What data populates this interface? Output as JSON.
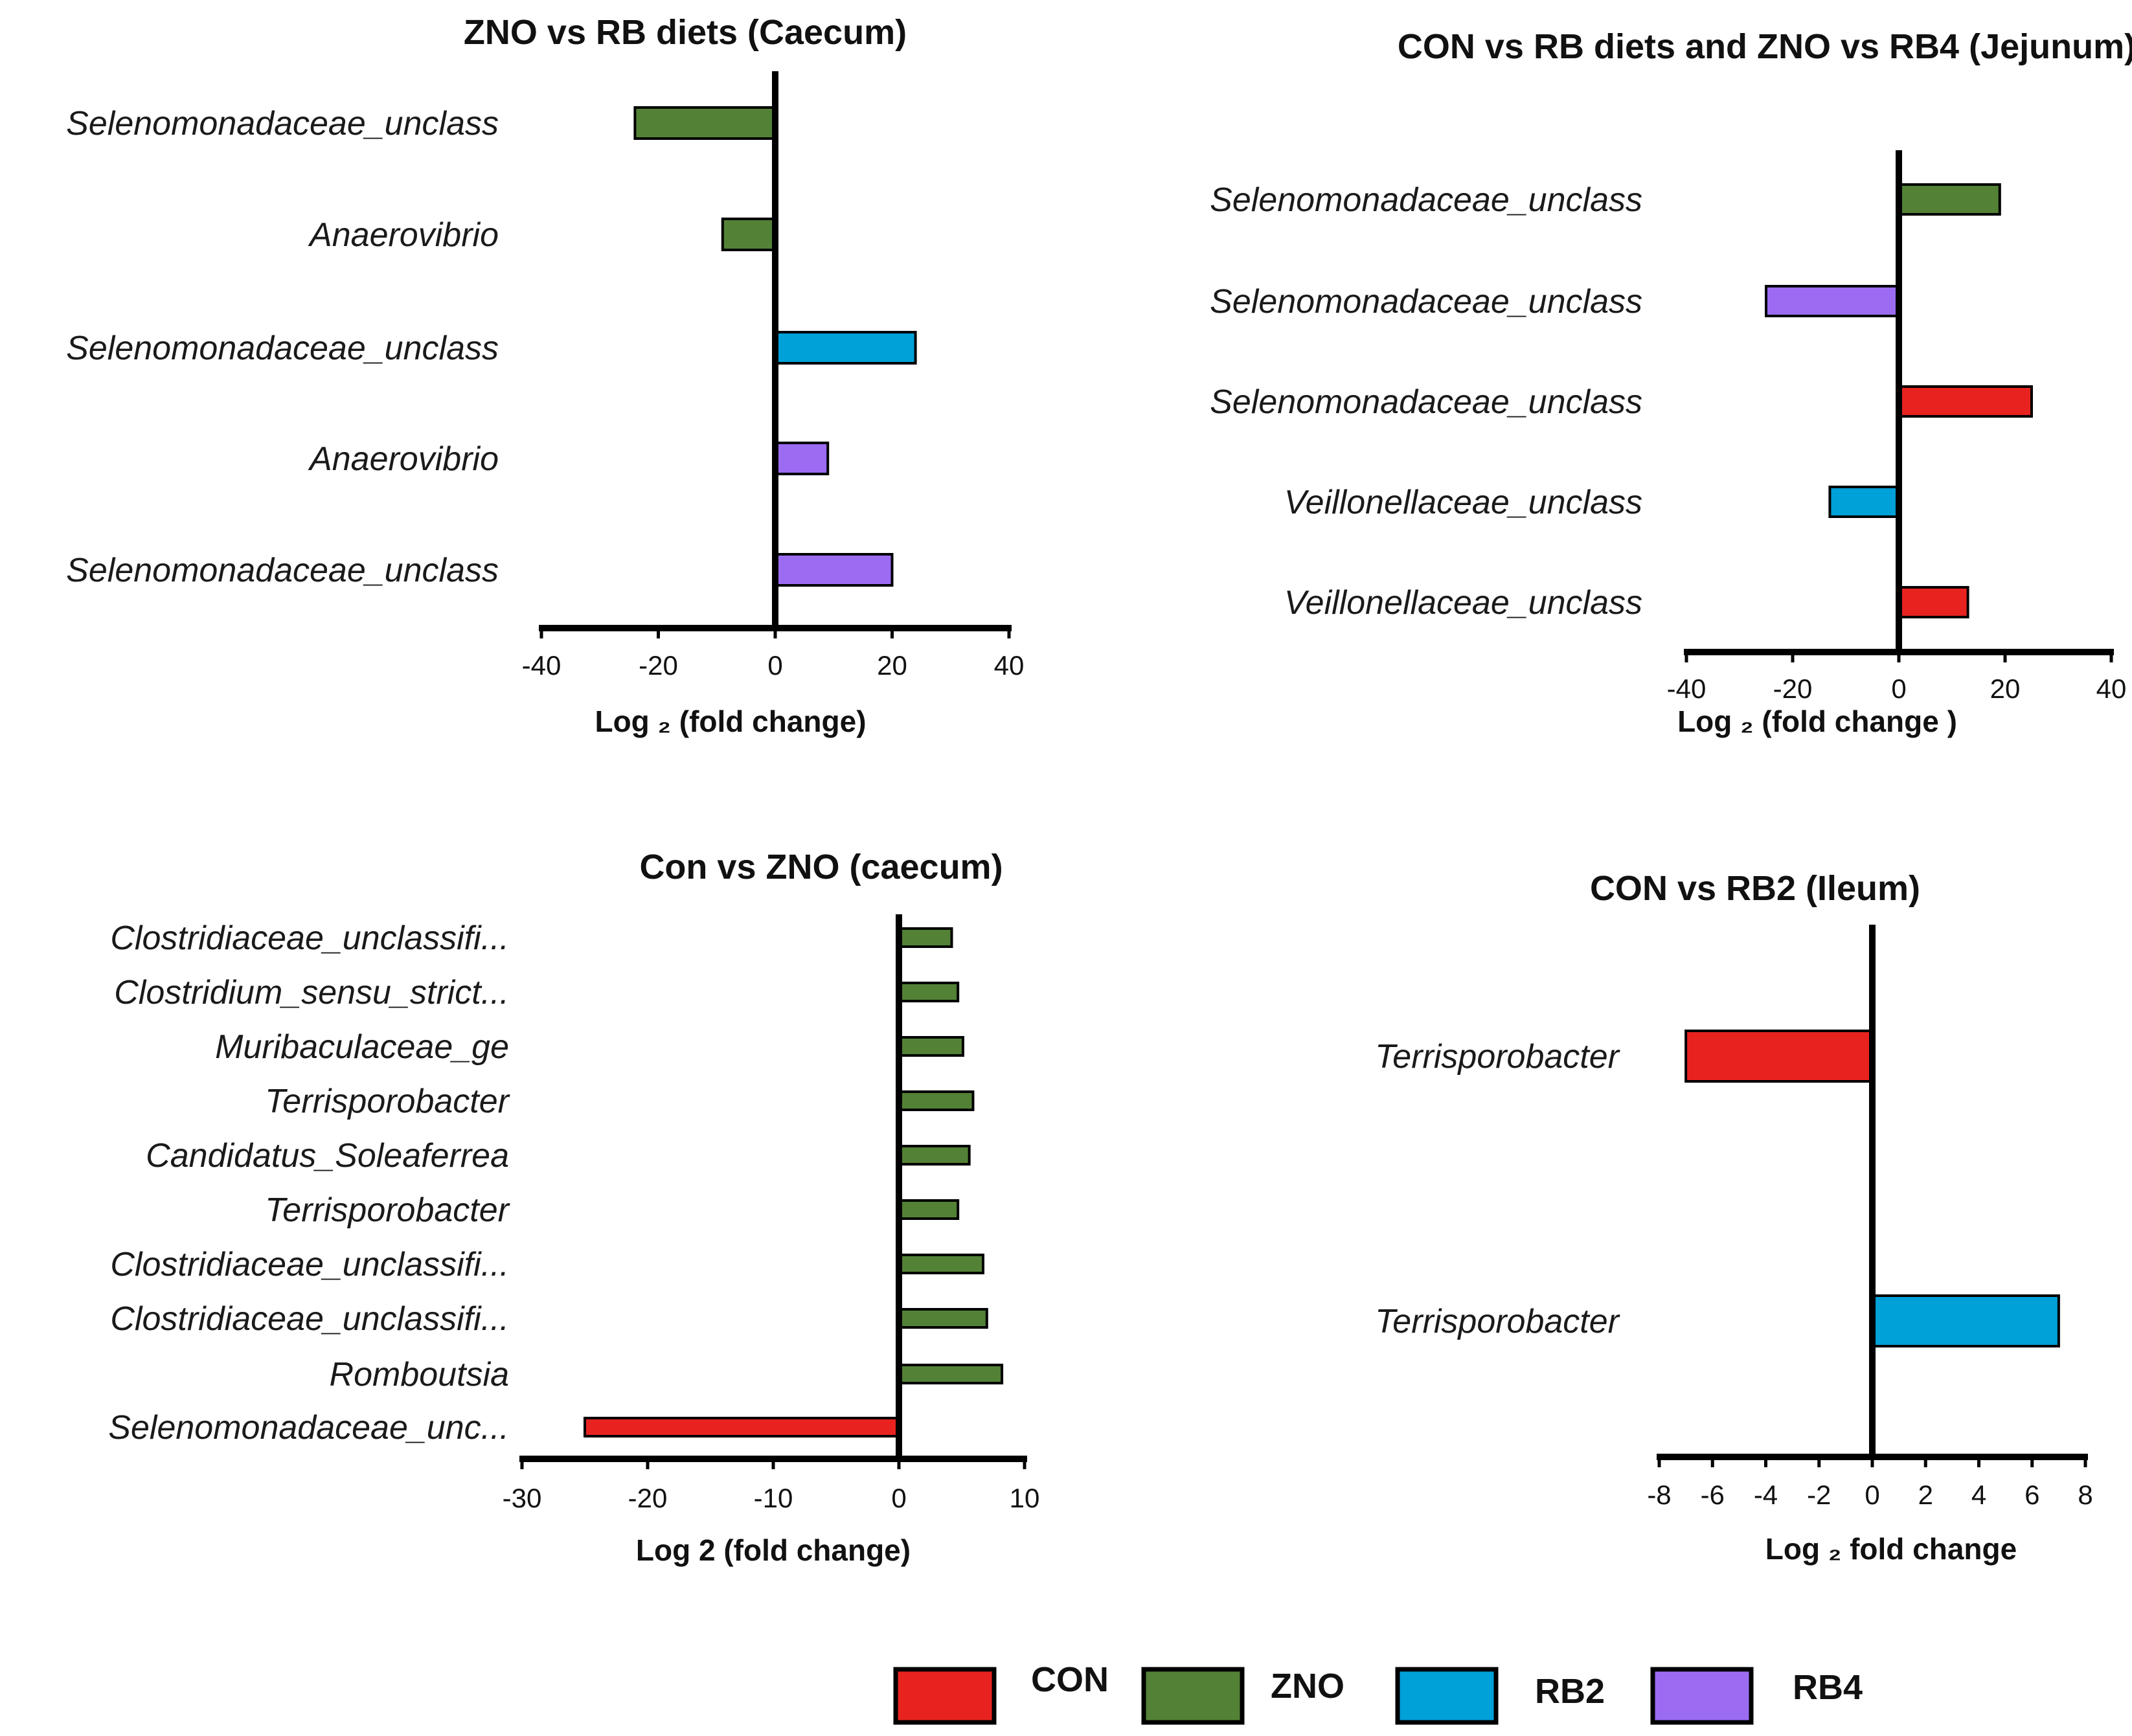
{
  "colors": {
    "CON": "#e8231f",
    "ZNO": "#538135",
    "RB2": "#00a0d8",
    "RB4": "#9b6cf2"
  },
  "legend": [
    {
      "key": "CON",
      "label": "CON"
    },
    {
      "key": "ZNO",
      "label": "ZNO"
    },
    {
      "key": "RB2",
      "label": "RB2"
    },
    {
      "key": "RB4",
      "label": "RB4"
    }
  ],
  "chart_data": [
    {
      "id": "caecum-rb",
      "type": "bar",
      "orientation": "horizontal",
      "title": "ZNO vs RB  diets (Caecum)",
      "xlabel": "Log ₂ (fold change)",
      "xlim": [
        -40,
        40
      ],
      "ticks": [
        -40,
        -20,
        0,
        20,
        40
      ],
      "categories": [
        "Selenomonadaceae_unclass",
        "Anaerovibrio",
        "Selenomonadaceae_unclass",
        "Anaerovibrio",
        "Selenomonadaceae_unclass"
      ],
      "values": [
        -24,
        -9,
        24,
        9,
        20
      ],
      "groups": [
        "ZNO",
        "ZNO",
        "RB2",
        "RB4",
        "RB4"
      ]
    },
    {
      "id": "jejunum",
      "type": "bar",
      "orientation": "horizontal",
      "title": "CON vs RB diets and ZNO vs RB4 (Jejunum)",
      "xlabel": "Log ₂ (fold change )",
      "xlim": [
        -40,
        40
      ],
      "ticks": [
        -40,
        -20,
        0,
        20,
        40
      ],
      "categories": [
        "Selenomonadaceae_unclass",
        "Selenomonadaceae_unclass",
        "Selenomonadaceae_unclass",
        "Veillonellaceae_unclass",
        "Veillonellaceae_unclass"
      ],
      "values": [
        19,
        -25,
        25,
        -13,
        13
      ],
      "groups": [
        "ZNO",
        "RB4",
        "CON",
        "RB2",
        "CON"
      ]
    },
    {
      "id": "caecum-zno",
      "type": "bar",
      "orientation": "horizontal",
      "title": "Con vs ZNO (caecum)",
      "xlabel": "Log 2 (fold change)",
      "xlim": [
        -30,
        10
      ],
      "ticks": [
        -30,
        -20,
        -10,
        0,
        10
      ],
      "categories": [
        "Clostridiaceae_unclassifi...",
        "Clostridium_sensu_strict...",
        "Muribaculaceae_ge",
        "Terrisporobacter",
        "Candidatus_Soleaferrea",
        "Terrisporobacter",
        "Clostridiaceae_unclassifi...",
        "Clostridiaceae_unclassifi...",
        "Romboutsia",
        "Selenomonadaceae_unc..."
      ],
      "values": [
        4.2,
        4.7,
        5.1,
        5.9,
        5.6,
        4.7,
        6.7,
        7.0,
        8.2,
        -25
      ],
      "groups": [
        "ZNO",
        "ZNO",
        "ZNO",
        "ZNO",
        "ZNO",
        "ZNO",
        "ZNO",
        "ZNO",
        "ZNO",
        "CON"
      ]
    },
    {
      "id": "ileum",
      "type": "bar",
      "orientation": "horizontal",
      "title": "CON vs RB2 (Ileum)",
      "xlabel": "Log ₂ fold change",
      "xlim": [
        -8,
        8
      ],
      "ticks": [
        -8,
        -6,
        -4,
        -2,
        0,
        2,
        4,
        6,
        8
      ],
      "categories": [
        "Terrisporobacter",
        "Terrisporobacter"
      ],
      "values": [
        -7,
        7
      ],
      "groups": [
        "CON",
        "RB2"
      ]
    }
  ]
}
